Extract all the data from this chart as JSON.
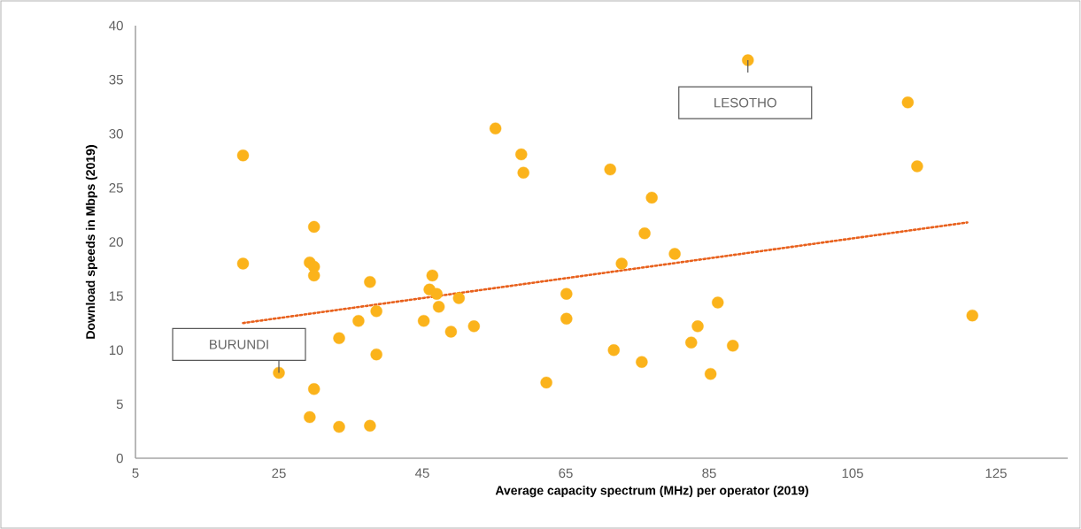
{
  "chart_data": {
    "type": "scatter",
    "xlabel": "Average capacity spectrum (MHz) per operator (2019)",
    "ylabel": "Download speeds in Mbps (2019)",
    "xlim": [
      5,
      135
    ],
    "xticks": [
      5,
      25,
      45,
      65,
      85,
      105,
      125
    ],
    "ylim": [
      0,
      40
    ],
    "yticks": [
      0,
      5,
      10,
      15,
      20,
      25,
      30,
      35,
      40
    ],
    "series": [
      {
        "color": "#fbb31b",
        "marker": "circle",
        "x": [
          20,
          20,
          25,
          29.3,
          29.3,
          29.9,
          29.9,
          29.9,
          29.9,
          33.4,
          33.4,
          36.1,
          37.7,
          37.7,
          38.6,
          38.6,
          45.2,
          46.4,
          46.0,
          47.0,
          47.3,
          49.0,
          50.1,
          52.2,
          55.2,
          58.8,
          59.1,
          62.3,
          65.1,
          65.1,
          71.2,
          77.0,
          76.0,
          90.4,
          112.7,
          114.0,
          72.8,
          80.2,
          71.7,
          75.6,
          82.5,
          83.4,
          86.2,
          88.3,
          85.2,
          121.7
        ],
        "values": [
          28.0,
          18.0,
          7.9,
          3.8,
          18.1,
          17.7,
          16.9,
          21.4,
          6.4,
          2.9,
          11.1,
          12.7,
          16.3,
          3.0,
          13.6,
          9.6,
          12.7,
          16.9,
          15.6,
          15.2,
          14.0,
          11.7,
          14.8,
          12.2,
          30.5,
          28.1,
          26.4,
          7.0,
          15.2,
          12.9,
          26.7,
          24.1,
          20.8,
          36.8,
          32.9,
          27.0,
          18.0,
          18.9,
          10.0,
          8.9,
          10.7,
          12.2,
          14.4,
          10.4,
          7.8,
          13.2
        ]
      },
      {
        "type": "line",
        "color": "#e8601c",
        "line_style": "dotted",
        "marker": "none",
        "x": [
          20,
          121
        ],
        "values": [
          12.5,
          21.8
        ]
      }
    ],
    "annotations": [
      {
        "text": "LESOTHO",
        "x": 90.4,
        "y": 36.8
      },
      {
        "text": "BURUNDI",
        "x": 25,
        "y": 7.9
      }
    ]
  }
}
